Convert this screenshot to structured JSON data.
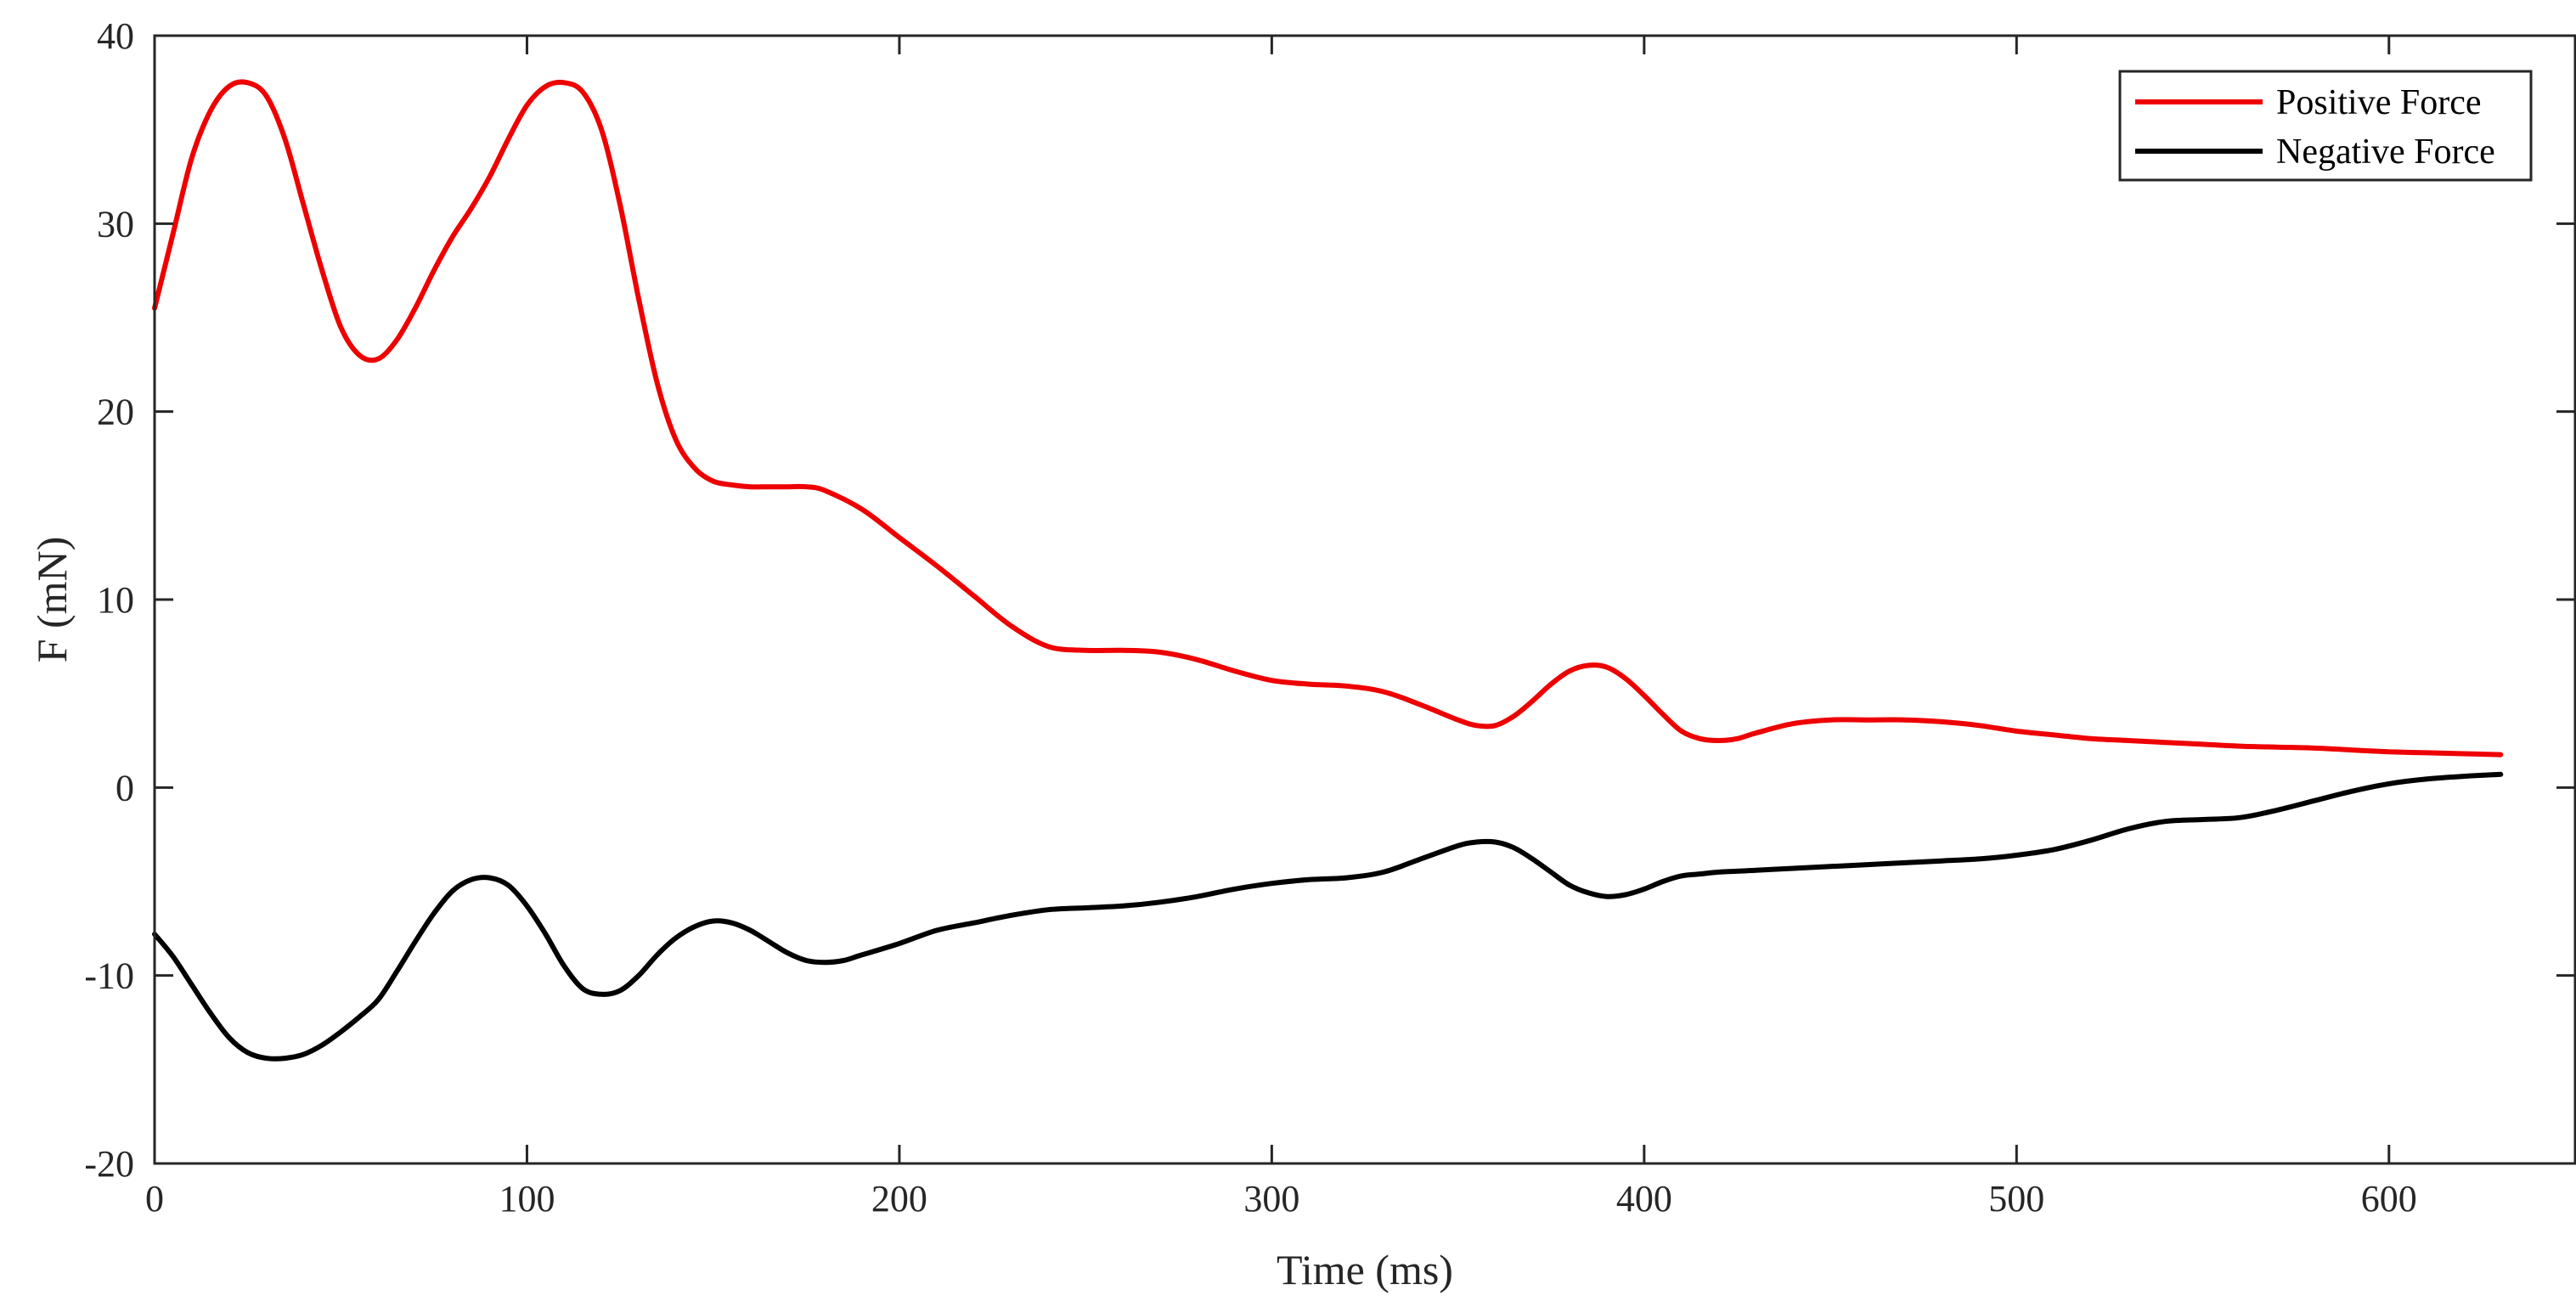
{
  "chart_data": {
    "type": "line",
    "xlabel": "Time (ms)",
    "ylabel": "F (mN)",
    "xlim": [
      0,
      650
    ],
    "ylim": [
      -20,
      40
    ],
    "xticks": [
      0,
      100,
      200,
      300,
      400,
      500,
      600
    ],
    "yticks": [
      -20,
      -10,
      0,
      10,
      20,
      30,
      40
    ],
    "grid": false,
    "legend_position": "top-right",
    "series": [
      {
        "name": "Positive Force",
        "color": "#ee0000",
        "x": [
          0,
          5,
          10,
          15,
          20,
          25,
          30,
          35,
          40,
          45,
          50,
          55,
          60,
          65,
          70,
          75,
          80,
          85,
          90,
          95,
          100,
          105,
          110,
          115,
          120,
          125,
          130,
          135,
          140,
          145,
          150,
          155,
          160,
          165,
          170,
          175,
          180,
          190,
          200,
          210,
          220,
          230,
          240,
          250,
          260,
          270,
          280,
          290,
          300,
          310,
          320,
          330,
          340,
          350,
          355,
          360,
          365,
          370,
          375,
          380,
          385,
          390,
          395,
          400,
          405,
          410,
          415,
          420,
          425,
          430,
          440,
          450,
          460,
          470,
          480,
          490,
          500,
          510,
          520,
          530,
          540,
          550,
          560,
          570,
          580,
          590,
          600,
          610,
          620,
          630
        ],
        "y": [
          25.5,
          29.5,
          33.5,
          36.0,
          37.3,
          37.5,
          36.8,
          34.5,
          31.0,
          27.5,
          24.5,
          23.0,
          22.8,
          23.8,
          25.5,
          27.5,
          29.3,
          30.8,
          32.5,
          34.5,
          36.3,
          37.3,
          37.5,
          37.0,
          35.0,
          31.0,
          26.0,
          21.5,
          18.5,
          17.0,
          16.3,
          16.1,
          16.0,
          16.0,
          16.0,
          16.0,
          15.8,
          14.8,
          13.3,
          11.8,
          10.2,
          8.6,
          7.5,
          7.3,
          7.3,
          7.2,
          6.8,
          6.2,
          5.7,
          5.5,
          5.4,
          5.1,
          4.4,
          3.6,
          3.3,
          3.3,
          3.8,
          4.6,
          5.5,
          6.2,
          6.5,
          6.4,
          5.8,
          4.9,
          3.9,
          3.0,
          2.6,
          2.5,
          2.6,
          2.9,
          3.4,
          3.6,
          3.6,
          3.6,
          3.5,
          3.3,
          3.0,
          2.8,
          2.6,
          2.5,
          2.4,
          2.3,
          2.2,
          2.15,
          2.1,
          2.0,
          1.9,
          1.85,
          1.8,
          1.75
        ]
      },
      {
        "name": "Negative Force",
        "color": "#000000",
        "x": [
          0,
          5,
          10,
          15,
          20,
          25,
          30,
          35,
          40,
          45,
          50,
          55,
          60,
          65,
          70,
          75,
          80,
          85,
          90,
          95,
          100,
          105,
          110,
          115,
          120,
          125,
          130,
          135,
          140,
          145,
          150,
          155,
          160,
          165,
          170,
          175,
          180,
          185,
          190,
          200,
          210,
          220,
          230,
          240,
          250,
          260,
          270,
          280,
          290,
          300,
          310,
          320,
          330,
          340,
          350,
          355,
          360,
          365,
          370,
          375,
          380,
          385,
          390,
          395,
          400,
          405,
          410,
          415,
          420,
          430,
          440,
          450,
          460,
          470,
          480,
          490,
          500,
          510,
          520,
          530,
          540,
          550,
          560,
          570,
          580,
          590,
          600,
          610,
          620,
          630
        ],
        "y": [
          -7.8,
          -9.0,
          -10.5,
          -12.0,
          -13.3,
          -14.1,
          -14.4,
          -14.4,
          -14.2,
          -13.7,
          -13.0,
          -12.2,
          -11.3,
          -9.8,
          -8.2,
          -6.7,
          -5.5,
          -4.9,
          -4.8,
          -5.2,
          -6.3,
          -7.8,
          -9.5,
          -10.7,
          -11.0,
          -10.8,
          -10.0,
          -8.9,
          -8.0,
          -7.4,
          -7.1,
          -7.2,
          -7.6,
          -8.2,
          -8.8,
          -9.2,
          -9.3,
          -9.2,
          -8.9,
          -8.3,
          -7.6,
          -7.2,
          -6.8,
          -6.5,
          -6.4,
          -6.3,
          -6.1,
          -5.8,
          -5.4,
          -5.1,
          -4.9,
          -4.8,
          -4.5,
          -3.8,
          -3.1,
          -2.9,
          -2.9,
          -3.2,
          -3.8,
          -4.5,
          -5.2,
          -5.6,
          -5.8,
          -5.7,
          -5.4,
          -5.0,
          -4.7,
          -4.6,
          -4.5,
          -4.4,
          -4.3,
          -4.2,
          -4.1,
          -4.0,
          -3.9,
          -3.8,
          -3.6,
          -3.3,
          -2.8,
          -2.2,
          -1.8,
          -1.7,
          -1.6,
          -1.2,
          -0.7,
          -0.2,
          0.2,
          0.45,
          0.6,
          0.7
        ]
      }
    ]
  }
}
